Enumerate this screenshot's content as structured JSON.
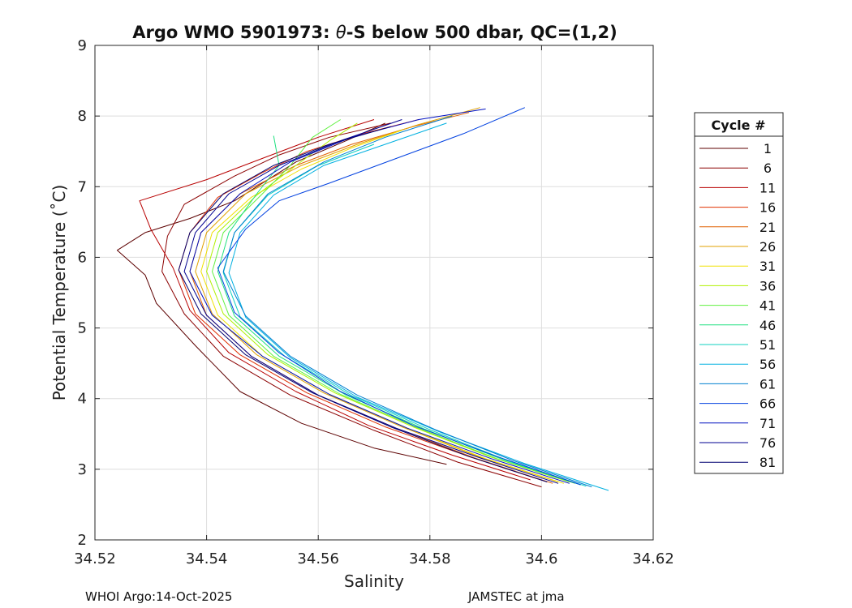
{
  "chart_data": {
    "type": "line",
    "title_parts": [
      "Argo WMO 5901973: ",
      "θ",
      "-S below 500 dbar,  QC=(1,2)"
    ],
    "xlabel": "Salinity",
    "ylabel": "Potential Temperature (˚C)",
    "xlim": [
      34.52,
      34.62
    ],
    "ylim": [
      2,
      9
    ],
    "xticks": [
      34.52,
      34.54,
      34.56,
      34.58,
      34.6,
      34.62
    ],
    "xtick_labels": [
      "34.52",
      "34.54",
      "34.56",
      "34.58",
      "34.6",
      "34.62"
    ],
    "yticks": [
      2,
      3,
      4,
      5,
      6,
      7,
      8,
      9
    ],
    "ytick_labels": [
      "2",
      "3",
      "4",
      "5",
      "6",
      "7",
      "8",
      "9"
    ],
    "grid": true,
    "legend": {
      "title": "Cycle #",
      "placement": "right",
      "entries": [
        {
          "label": "1",
          "color": "#5c0000"
        },
        {
          "label": "6",
          "color": "#8b0000"
        },
        {
          "label": "11",
          "color": "#b80000"
        },
        {
          "label": "16",
          "color": "#e03000"
        },
        {
          "label": "21",
          "color": "#e06000"
        },
        {
          "label": "26",
          "color": "#e0a000"
        },
        {
          "label": "31",
          "color": "#f0e000"
        },
        {
          "label": "36",
          "color": "#b0f000"
        },
        {
          "label": "41",
          "color": "#60f040"
        },
        {
          "label": "46",
          "color": "#20e080"
        },
        {
          "label": "51",
          "color": "#10d0c0"
        },
        {
          "label": "56",
          "color": "#00b0e0"
        },
        {
          "label": "61",
          "color": "#0080d0"
        },
        {
          "label": "66",
          "color": "#0040e0"
        },
        {
          "label": "71",
          "color": "#0010c0"
        },
        {
          "label": "76",
          "color": "#000090"
        },
        {
          "label": "81",
          "color": "#000070"
        }
      ]
    },
    "series": [
      {
        "name": "1",
        "color": "#5c0000",
        "points": [
          [
            34.583,
            3.07
          ],
          [
            34.57,
            3.3
          ],
          [
            34.557,
            3.65
          ],
          [
            34.546,
            4.1
          ],
          [
            34.538,
            4.75
          ],
          [
            34.531,
            5.35
          ],
          [
            34.529,
            5.75
          ],
          [
            34.524,
            6.1
          ],
          [
            34.529,
            6.35
          ],
          [
            34.537,
            6.55
          ],
          [
            34.545,
            6.8
          ],
          [
            34.55,
            7.05
          ],
          [
            34.556,
            7.35
          ],
          [
            34.565,
            7.65
          ],
          [
            34.572,
            7.9
          ]
        ]
      },
      {
        "name": "6",
        "color": "#8b0000",
        "points": [
          [
            34.6,
            2.75
          ],
          [
            34.585,
            3.1
          ],
          [
            34.57,
            3.55
          ],
          [
            34.555,
            4.05
          ],
          [
            34.543,
            4.6
          ],
          [
            34.536,
            5.2
          ],
          [
            34.532,
            5.8
          ],
          [
            34.533,
            6.3
          ],
          [
            34.536,
            6.75
          ],
          [
            34.545,
            7.15
          ],
          [
            34.553,
            7.45
          ],
          [
            34.562,
            7.7
          ],
          [
            34.573,
            7.9
          ]
        ]
      },
      {
        "name": "11",
        "color": "#b80000",
        "points": [
          [
            34.598,
            2.85
          ],
          [
            34.584,
            3.2
          ],
          [
            34.569,
            3.62
          ],
          [
            34.556,
            4.1
          ],
          [
            34.544,
            4.65
          ],
          [
            34.537,
            5.25
          ],
          [
            34.534,
            5.85
          ],
          [
            34.53,
            6.4
          ],
          [
            34.528,
            6.8
          ],
          [
            34.54,
            7.1
          ],
          [
            34.55,
            7.4
          ],
          [
            34.56,
            7.7
          ],
          [
            34.57,
            7.95
          ]
        ]
      },
      {
        "name": "16",
        "color": "#e03000",
        "points": [
          [
            34.601,
            2.82
          ],
          [
            34.587,
            3.18
          ],
          [
            34.572,
            3.6
          ],
          [
            34.558,
            4.08
          ],
          [
            34.546,
            4.62
          ],
          [
            34.538,
            5.2
          ],
          [
            34.535,
            5.82
          ],
          [
            34.537,
            6.35
          ],
          [
            34.542,
            6.85
          ],
          [
            34.55,
            7.2
          ],
          [
            34.558,
            7.5
          ],
          [
            34.568,
            7.75
          ],
          [
            34.578,
            7.95
          ]
        ]
      },
      {
        "name": "21",
        "color": "#e06000",
        "points": [
          [
            34.602,
            2.8
          ],
          [
            34.588,
            3.16
          ],
          [
            34.574,
            3.58
          ],
          [
            34.56,
            4.05
          ],
          [
            34.548,
            4.6
          ],
          [
            34.54,
            5.18
          ],
          [
            34.537,
            5.8
          ],
          [
            34.539,
            6.35
          ],
          [
            34.546,
            6.9
          ],
          [
            34.556,
            7.3
          ],
          [
            34.566,
            7.6
          ],
          [
            34.577,
            7.85
          ],
          [
            34.587,
            8.05
          ]
        ]
      },
      {
        "name": "26",
        "color": "#e0a000",
        "points": [
          [
            34.603,
            2.82
          ],
          [
            34.589,
            3.17
          ],
          [
            34.575,
            3.6
          ],
          [
            34.561,
            4.08
          ],
          [
            34.549,
            4.62
          ],
          [
            34.541,
            5.2
          ],
          [
            34.538,
            5.8
          ],
          [
            34.54,
            6.35
          ],
          [
            34.547,
            6.9
          ],
          [
            34.557,
            7.3
          ],
          [
            34.567,
            7.6
          ],
          [
            34.578,
            7.88
          ],
          [
            34.589,
            8.12
          ]
        ]
      },
      {
        "name": "31",
        "color": "#f0e000",
        "points": [
          [
            34.604,
            2.8
          ],
          [
            34.59,
            3.15
          ],
          [
            34.576,
            3.58
          ],
          [
            34.562,
            4.06
          ],
          [
            34.55,
            4.6
          ],
          [
            34.542,
            5.18
          ],
          [
            34.539,
            5.8
          ],
          [
            34.541,
            6.35
          ],
          [
            34.548,
            6.85
          ],
          [
            34.557,
            7.25
          ],
          [
            34.566,
            7.55
          ],
          [
            34.575,
            7.8
          ]
        ]
      },
      {
        "name": "36",
        "color": "#b0f000",
        "points": [
          [
            34.605,
            2.82
          ],
          [
            34.591,
            3.17
          ],
          [
            34.577,
            3.6
          ],
          [
            34.563,
            4.08
          ],
          [
            34.551,
            4.62
          ],
          [
            34.543,
            5.2
          ],
          [
            34.54,
            5.8
          ],
          [
            34.542,
            6.35
          ],
          [
            34.549,
            6.88
          ],
          [
            34.556,
            7.3
          ],
          [
            34.562,
            7.65
          ],
          [
            34.567,
            7.9
          ]
        ]
      },
      {
        "name": "41",
        "color": "#60f040",
        "points": [
          [
            34.606,
            2.8
          ],
          [
            34.592,
            3.15
          ],
          [
            34.578,
            3.58
          ],
          [
            34.564,
            4.06
          ],
          [
            34.552,
            4.6
          ],
          [
            34.544,
            5.18
          ],
          [
            34.541,
            5.8
          ],
          [
            34.543,
            6.35
          ],
          [
            34.55,
            6.9
          ],
          [
            34.555,
            7.3
          ],
          [
            34.559,
            7.7
          ],
          [
            34.564,
            7.95
          ]
        ]
      },
      {
        "name": "46",
        "color": "#20e080",
        "points": [
          [
            34.607,
            2.78
          ],
          [
            34.593,
            3.14
          ],
          [
            34.579,
            3.57
          ],
          [
            34.565,
            4.05
          ],
          [
            34.553,
            4.6
          ],
          [
            34.545,
            5.17
          ],
          [
            34.542,
            5.8
          ],
          [
            34.544,
            6.35
          ],
          [
            34.549,
            6.9
          ],
          [
            34.553,
            7.3
          ],
          [
            34.552,
            7.72
          ]
        ]
      },
      {
        "name": "51",
        "color": "#10d0c0",
        "points": [
          [
            34.608,
            2.76
          ],
          [
            34.594,
            3.12
          ],
          [
            34.58,
            3.56
          ],
          [
            34.566,
            4.04
          ],
          [
            34.554,
            4.6
          ],
          [
            34.546,
            5.16
          ],
          [
            34.543,
            5.78
          ],
          [
            34.545,
            6.35
          ],
          [
            34.551,
            6.88
          ],
          [
            34.56,
            7.3
          ],
          [
            34.57,
            7.6
          ]
        ]
      },
      {
        "name": "56",
        "color": "#00b0e0",
        "points": [
          [
            34.612,
            2.7
          ],
          [
            34.597,
            3.08
          ],
          [
            34.582,
            3.52
          ],
          [
            34.567,
            4.02
          ],
          [
            34.555,
            4.58
          ],
          [
            34.547,
            5.15
          ],
          [
            34.544,
            5.78
          ],
          [
            34.546,
            6.35
          ],
          [
            34.552,
            6.88
          ],
          [
            34.561,
            7.3
          ],
          [
            34.572,
            7.6
          ],
          [
            34.583,
            7.9
          ]
        ]
      },
      {
        "name": "61",
        "color": "#0080d0",
        "points": [
          [
            34.609,
            2.75
          ],
          [
            34.595,
            3.12
          ],
          [
            34.581,
            3.56
          ],
          [
            34.567,
            4.05
          ],
          [
            34.555,
            4.6
          ],
          [
            34.547,
            5.17
          ],
          [
            34.543,
            5.8
          ],
          [
            34.545,
            6.35
          ],
          [
            34.551,
            6.9
          ],
          [
            34.561,
            7.35
          ],
          [
            34.572,
            7.7
          ],
          [
            34.584,
            8.0
          ]
        ]
      },
      {
        "name": "66",
        "color": "#0040e0",
        "points": [
          [
            34.607,
            2.78
          ],
          [
            34.592,
            3.18
          ],
          [
            34.577,
            3.62
          ],
          [
            34.564,
            4.1
          ],
          [
            34.553,
            4.65
          ],
          [
            34.545,
            5.22
          ],
          [
            34.542,
            5.85
          ],
          [
            34.547,
            6.4
          ],
          [
            34.553,
            6.8
          ],
          [
            34.562,
            7.05
          ],
          [
            34.574,
            7.4
          ],
          [
            34.586,
            7.75
          ],
          [
            34.597,
            8.12
          ]
        ]
      },
      {
        "name": "71",
        "color": "#0010c0",
        "points": [
          [
            34.605,
            2.8
          ],
          [
            34.591,
            3.15
          ],
          [
            34.576,
            3.58
          ],
          [
            34.562,
            4.06
          ],
          [
            34.55,
            4.6
          ],
          [
            34.541,
            5.18
          ],
          [
            34.537,
            5.8
          ],
          [
            34.539,
            6.35
          ],
          [
            34.546,
            6.9
          ],
          [
            34.555,
            7.35
          ],
          [
            34.566,
            7.7
          ],
          [
            34.578,
            7.95
          ],
          [
            34.59,
            8.1
          ]
        ]
      },
      {
        "name": "76",
        "color": "#000090",
        "points": [
          [
            34.603,
            2.8
          ],
          [
            34.589,
            3.16
          ],
          [
            34.574,
            3.58
          ],
          [
            34.56,
            4.05
          ],
          [
            34.548,
            4.6
          ],
          [
            34.54,
            5.18
          ],
          [
            34.536,
            5.8
          ],
          [
            34.538,
            6.35
          ],
          [
            34.544,
            6.9
          ],
          [
            34.553,
            7.3
          ],
          [
            34.564,
            7.65
          ],
          [
            34.575,
            7.95
          ]
        ]
      },
      {
        "name": "81",
        "color": "#000070",
        "points": [
          [
            34.601,
            2.82
          ],
          [
            34.587,
            3.18
          ],
          [
            34.573,
            3.6
          ],
          [
            34.559,
            4.08
          ],
          [
            34.547,
            4.62
          ],
          [
            34.539,
            5.2
          ],
          [
            34.535,
            5.82
          ],
          [
            34.537,
            6.35
          ],
          [
            34.543,
            6.9
          ],
          [
            34.552,
            7.3
          ],
          [
            34.562,
            7.6
          ],
          [
            34.573,
            7.85
          ]
        ]
      }
    ]
  },
  "footer": {
    "left": "WHOI Argo:14-Oct-2025",
    "right": "JAMSTEC at jma"
  }
}
